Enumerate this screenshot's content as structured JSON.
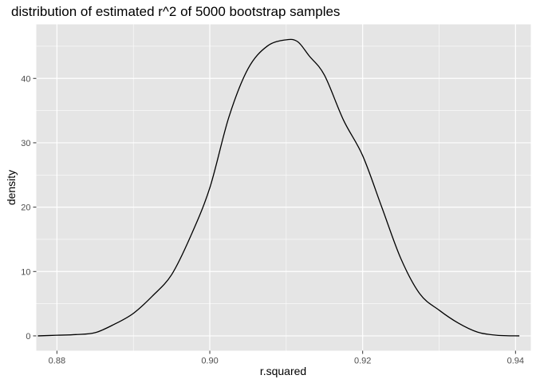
{
  "chart_data": {
    "type": "line",
    "title": "distribution of estimated r^2 of 5000 bootstrap samples",
    "xlabel": "r.squared",
    "ylabel": "density",
    "xlim": [
      0.8773,
      0.942
    ],
    "ylim": [
      -2.3,
      48.4
    ],
    "x_ticks": [
      0.88,
      0.9,
      0.92,
      0.94
    ],
    "x_tick_labels": [
      "0.88",
      "0.90",
      "0.92",
      "0.94"
    ],
    "y_ticks": [
      0,
      10,
      20,
      30,
      40
    ],
    "y_tick_labels": [
      "0",
      "10",
      "20",
      "30",
      "40"
    ],
    "grid": true,
    "background": "#e5e5e5",
    "grid_color": "#ffffff",
    "line_color": "#000000",
    "series": [
      {
        "x": [
          0.8775,
          0.88,
          0.8825,
          0.885,
          0.8875,
          0.89,
          0.8925,
          0.895,
          0.8975,
          0.9,
          0.9025,
          0.905,
          0.9075,
          0.91,
          0.9115,
          0.913,
          0.915,
          0.9175,
          0.92,
          0.9225,
          0.925,
          0.9275,
          0.93,
          0.9325,
          0.935,
          0.9375,
          0.9405
        ],
        "y": [
          0.0,
          0.1,
          0.2,
          0.5,
          1.8,
          3.5,
          6.2,
          9.5,
          15.5,
          23.0,
          34.0,
          41.5,
          45.0,
          46.0,
          45.7,
          43.5,
          40.5,
          33.5,
          28.0,
          20.0,
          12.0,
          6.5,
          4.0,
          2.0,
          0.6,
          0.1,
          0.0
        ]
      }
    ]
  }
}
